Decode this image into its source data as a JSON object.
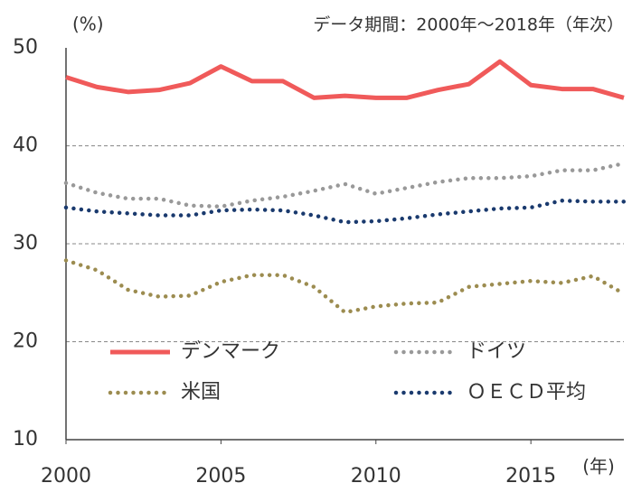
{
  "chart_data": {
    "type": "line",
    "unit_label": "(%)",
    "note": "データ期間：2000年〜2018年（年次）",
    "x_label": "(年)",
    "x": [
      2000,
      2001,
      2002,
      2003,
      2004,
      2005,
      2006,
      2007,
      2008,
      2009,
      2010,
      2011,
      2012,
      2013,
      2014,
      2015,
      2016,
      2017,
      2018
    ],
    "xlim": [
      2000,
      2018
    ],
    "xticks": [
      2000,
      2005,
      2010,
      2015
    ],
    "ylim": [
      10,
      50
    ],
    "yticks": [
      10,
      20,
      30,
      40,
      50
    ],
    "grid": true,
    "series": [
      {
        "name": "デンマーク",
        "color": "#f05a5a",
        "style": "solid",
        "values": [
          47.0,
          46.0,
          45.5,
          45.7,
          46.4,
          48.1,
          46.6,
          46.6,
          44.9,
          45.1,
          44.9,
          44.9,
          45.7,
          46.3,
          48.6,
          46.2,
          45.8,
          45.8,
          44.9
        ]
      },
      {
        "name": "ドイツ",
        "color": "#999999",
        "style": "dotted",
        "values": [
          36.2,
          35.2,
          34.6,
          34.6,
          33.9,
          33.8,
          34.4,
          34.8,
          35.4,
          36.1,
          35.1,
          35.7,
          36.3,
          36.7,
          36.7,
          36.9,
          37.5,
          37.5,
          38.2
        ]
      },
      {
        "name": "米国",
        "color": "#9c8c50",
        "style": "dotted",
        "values": [
          28.3,
          27.3,
          25.3,
          24.6,
          24.7,
          26.1,
          26.8,
          26.8,
          25.6,
          23.0,
          23.6,
          23.9,
          24.0,
          25.6,
          25.9,
          26.2,
          26.0,
          26.7,
          24.9
        ]
      },
      {
        "name": "ＯＥＣＤ平均",
        "color": "#1a3a6e",
        "style": "dotted",
        "values": [
          33.7,
          33.3,
          33.1,
          32.9,
          32.9,
          33.4,
          33.5,
          33.4,
          32.9,
          32.2,
          32.3,
          32.6,
          33.0,
          33.3,
          33.6,
          33.7,
          34.4,
          34.3,
          34.3
        ]
      }
    ]
  }
}
